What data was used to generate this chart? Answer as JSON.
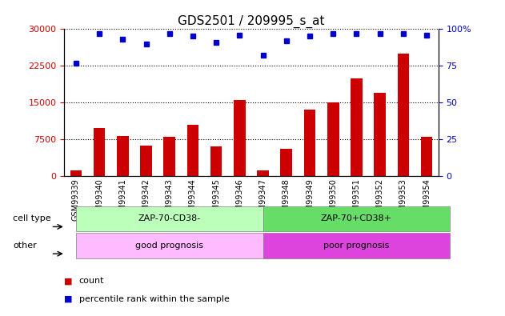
{
  "title": "GDS2501 / 209995_s_at",
  "samples": [
    "GSM99339",
    "GSM99340",
    "GSM99341",
    "GSM99342",
    "GSM99343",
    "GSM99344",
    "GSM99345",
    "GSM99346",
    "GSM99347",
    "GSM99348",
    "GSM99349",
    "GSM99350",
    "GSM99351",
    "GSM99352",
    "GSM99353",
    "GSM99354"
  ],
  "counts": [
    1200,
    9800,
    8200,
    6200,
    8000,
    10500,
    6000,
    15500,
    1200,
    5500,
    13500,
    15000,
    20000,
    17000,
    25000,
    8000
  ],
  "percentile_ranks": [
    77,
    97,
    93,
    90,
    97,
    95,
    91,
    96,
    82,
    92,
    95,
    97,
    97,
    97,
    97,
    96
  ],
  "ylim_left": [
    0,
    30000
  ],
  "ylim_right": [
    0,
    100
  ],
  "yticks_left": [
    0,
    7500,
    15000,
    22500,
    30000
  ],
  "yticks_right": [
    0,
    25,
    50,
    75,
    100
  ],
  "bar_color": "#cc0000",
  "dot_color": "#0000cc",
  "cell_type_labels": [
    "ZAP-70-CD38-",
    "ZAP-70+CD38+"
  ],
  "other_labels": [
    "good prognosis",
    "poor prognosis"
  ],
  "cell_type_colors": [
    "#bbffbb",
    "#66dd66"
  ],
  "other_colors": [
    "#ffbbff",
    "#dd44dd"
  ],
  "split_idx": 8,
  "legend_count_label": "count",
  "legend_pct_label": "percentile rank within the sample",
  "cell_type_row_label": "cell type",
  "other_row_label": "other",
  "bg_color": "#ffffff",
  "tick_label_fontsize": 7,
  "title_fontsize": 11
}
